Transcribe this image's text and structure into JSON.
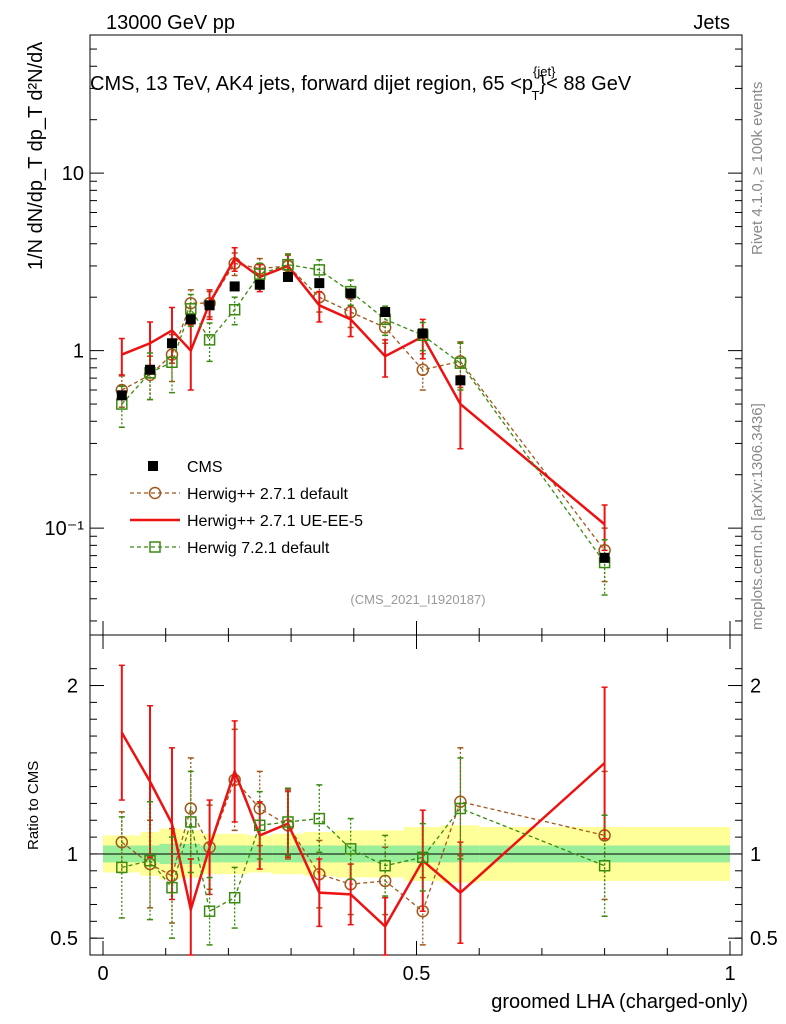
{
  "header": {
    "left": "13000 GeV pp",
    "right": "Jets",
    "title_main": "CMS, 13 TeV, AK4 jets, forward dijet region, 65 <p",
    "title_sup": "{jet}",
    "title_sub": "T",
    "title_end": "}< 88 GeV"
  },
  "side": {
    "rivet": "Rivet 4.1.0, ≥ 100k events",
    "mcplots": "mcplots.cern.ch [arXiv:1306.3436]"
  },
  "analysis_id": "(CMS_2021_I1920187)",
  "ylabel_top": "1/N dN/dp_T dp_T d²N/dλ",
  "ylabel_bottom": "Ratio to CMS",
  "xlabel": "groomed LHA (charged-only)",
  "chart_data": {
    "type": "scatter",
    "title": "CMS, 13 TeV, AK4 jets, forward dijet region, 65 < pT{jet} < 88 GeV",
    "xlabel": "groomed LHA (charged-only)",
    "ylabel": "1/N dN/dpT dpT d²N/dλ",
    "xlim": [
      0,
      1
    ],
    "ylim": [
      0.025,
      60
    ],
    "yscale": "log",
    "ratio_ylim": [
      0.4,
      2.3
    ],
    "x_ticks": [
      "0",
      "0.5",
      "1"
    ],
    "y_ticks": [
      "10⁻¹",
      "1",
      "10"
    ],
    "ratio_ticks": [
      "0.5",
      "1",
      "2"
    ],
    "x": [
      0.03,
      0.075,
      0.11,
      0.14,
      0.17,
      0.21,
      0.25,
      0.295,
      0.345,
      0.395,
      0.45,
      0.51,
      0.57,
      0.8
    ],
    "series": [
      {
        "name": "CMS",
        "color": "#000000",
        "style": "square-filled",
        "values": [
          0.56,
          0.78,
          1.1,
          1.5,
          1.8,
          2.3,
          2.35,
          2.6,
          2.4,
          2.1,
          1.65,
          1.25,
          0.68,
          0.068
        ]
      },
      {
        "name": "Herwig++ 2.7.1 default",
        "color": "#a0581a",
        "style": "circle-dashed",
        "values": [
          0.6,
          0.73,
          0.95,
          1.85,
          1.85,
          3.1,
          2.9,
          3.0,
          2.0,
          1.65,
          1.35,
          0.78,
          0.87,
          0.075
        ],
        "errors": [
          0.12,
          0.2,
          0.28,
          0.35,
          0.3,
          0.45,
          0.4,
          0.45,
          0.35,
          0.3,
          0.25,
          0.18,
          0.25,
          0.025
        ]
      },
      {
        "name": "Herwig++ 2.7.1 UE-EE-5",
        "color": "#ee1111",
        "style": "line-solid",
        "values": [
          0.95,
          1.1,
          1.3,
          1.0,
          1.85,
          3.3,
          2.6,
          3.0,
          1.8,
          1.5,
          0.93,
          1.2,
          0.5,
          0.105
        ],
        "errors": [
          0.22,
          0.35,
          0.45,
          0.4,
          0.35,
          0.5,
          0.45,
          0.5,
          0.35,
          0.3,
          0.22,
          0.3,
          0.22,
          0.03
        ]
      },
      {
        "name": "Herwig 7.2.1 default",
        "color": "#3a8a10",
        "style": "square-open-dashed",
        "values": [
          0.5,
          0.75,
          0.86,
          1.72,
          1.15,
          1.7,
          2.7,
          3.05,
          2.85,
          2.15,
          1.5,
          1.22,
          0.85,
          0.064
        ],
        "errors": [
          0.13,
          0.22,
          0.28,
          0.35,
          0.28,
          0.3,
          0.4,
          0.45,
          0.4,
          0.35,
          0.28,
          0.22,
          0.25,
          0.022
        ]
      }
    ],
    "ratios": [
      {
        "name": "Herwig++ 2.7.1 default",
        "values": [
          1.07,
          0.94,
          0.87,
          1.27,
          1.04,
          1.44,
          1.27,
          1.17,
          0.88,
          0.82,
          0.84,
          0.66,
          1.31,
          1.11
        ],
        "errors": [
          0.18,
          0.26,
          0.28,
          0.3,
          0.25,
          0.3,
          0.22,
          0.2,
          0.2,
          0.18,
          0.2,
          0.2,
          0.32,
          0.38
        ]
      },
      {
        "name": "Herwig++ 2.7.1 UE-EE-5",
        "values": [
          1.72,
          1.43,
          1.18,
          0.67,
          1.04,
          1.49,
          1.11,
          1.18,
          0.77,
          0.76,
          0.57,
          0.96,
          0.77,
          1.54
        ],
        "errors": [
          0.4,
          0.45,
          0.45,
          0.3,
          0.28,
          0.3,
          0.2,
          0.2,
          0.2,
          0.18,
          0.17,
          0.3,
          0.3,
          0.45
        ]
      },
      {
        "name": "Herwig 7.2.1 default",
        "values": [
          0.92,
          0.96,
          0.8,
          1.19,
          0.66,
          0.74,
          1.17,
          1.19,
          1.21,
          1.03,
          0.93,
          0.98,
          1.27,
          0.93
        ],
        "errors": [
          0.3,
          0.35,
          0.3,
          0.3,
          0.2,
          0.18,
          0.2,
          0.2,
          0.2,
          0.18,
          0.18,
          0.2,
          0.3,
          0.3
        ]
      }
    ],
    "ratio_band": {
      "edges": [
        0.0,
        0.06,
        0.09,
        0.125,
        0.155,
        0.19,
        0.23,
        0.27,
        0.32,
        0.37,
        0.42,
        0.48,
        0.54,
        0.6,
        1.0
      ],
      "green": [
        0.05,
        0.05,
        0.06,
        0.06,
        0.05,
        0.05,
        0.05,
        0.05,
        0.05,
        0.05,
        0.05,
        0.05,
        0.05,
        0.05
      ],
      "yellow": [
        0.11,
        0.13,
        0.15,
        0.14,
        0.12,
        0.12,
        0.11,
        0.12,
        0.13,
        0.14,
        0.14,
        0.16,
        0.17,
        0.16
      ]
    },
    "legend": [
      "CMS",
      "Herwig++ 2.7.1 default",
      "Herwig++ 2.7.1 UE-EE-5",
      "Herwig 7.2.1 default"
    ],
    "legend_position": "bottom-left"
  }
}
